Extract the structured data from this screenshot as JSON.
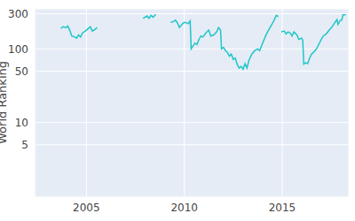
{
  "chart_data": {
    "type": "line",
    "y_label": "World Ranking",
    "color": "#1fc6c8",
    "log": "y",
    "grid": true,
    "xlim": [
      2002.4,
      2018.4
    ],
    "xticks": [
      2005,
      2010,
      2015
    ],
    "ylim": [
      1,
      350
    ],
    "yticks": [
      5,
      10,
      50,
      100,
      300
    ],
    "x": [
      2003.7,
      2003.8,
      2003.95,
      2004.05,
      2004.15,
      2004.25,
      2004.4,
      2004.5,
      2004.6,
      2004.7,
      2004.8,
      2004.95,
      2005.1,
      2005.2,
      2005.3,
      2005.45,
      2005.55,
      2006.5,
      2007.9,
      2008.0,
      2008.1,
      2008.2,
      2008.3,
      2008.4,
      2008.55,
      2009.0,
      2009.3,
      2009.45,
      2009.55,
      2009.65,
      2009.75,
      2009.85,
      2009.95,
      2010.05,
      2010.2,
      2010.3,
      2010.35,
      2010.45,
      2010.55,
      2010.65,
      2010.75,
      2010.85,
      2010.95,
      2011.1,
      2011.25,
      2011.35,
      2011.5,
      2011.65,
      2011.75,
      2011.85,
      2011.9,
      2012.0,
      2012.1,
      2012.2,
      2012.3,
      2012.4,
      2012.5,
      2012.6,
      2012.7,
      2012.8,
      2012.9,
      2013.0,
      2013.1,
      2013.2,
      2013.3,
      2013.45,
      2013.6,
      2013.75,
      2013.85,
      2014.0,
      2014.15,
      2014.3,
      2014.45,
      2014.6,
      2014.7,
      2014.8,
      2014.85,
      2014.95,
      2015.1,
      2015.2,
      2015.3,
      2015.4,
      2015.5,
      2015.6,
      2015.75,
      2015.85,
      2016.0,
      2016.05,
      2016.1,
      2016.2,
      2016.3,
      2016.4,
      2016.5,
      2016.6,
      2016.75,
      2016.9,
      2017.0,
      2017.1,
      2017.25,
      2017.4,
      2017.55,
      2017.7,
      2017.8,
      2017.85,
      2017.95,
      2018.05,
      2018.1,
      2018.25
    ],
    "values": [
      190,
      200,
      195,
      205,
      180,
      150,
      145,
      140,
      155,
      145,
      165,
      175,
      190,
      200,
      175,
      185,
      195,
      null,
      260,
      270,
      280,
      260,
      285,
      270,
      295,
      null,
      230,
      235,
      245,
      225,
      195,
      210,
      225,
      230,
      220,
      240,
      100,
      110,
      120,
      115,
      135,
      150,
      145,
      165,
      180,
      150,
      155,
      170,
      195,
      180,
      100,
      105,
      95,
      90,
      80,
      85,
      72,
      75,
      62,
      55,
      58,
      53,
      63,
      55,
      70,
      85,
      95,
      100,
      95,
      120,
      150,
      180,
      210,
      250,
      285,
      275,
      null,
      170,
      175,
      160,
      170,
      165,
      150,
      170,
      155,
      135,
      140,
      130,
      62,
      65,
      63,
      75,
      85,
      90,
      100,
      120,
      135,
      150,
      160,
      180,
      200,
      230,
      250,
      215,
      240,
      250,
      290,
      290
    ]
  }
}
